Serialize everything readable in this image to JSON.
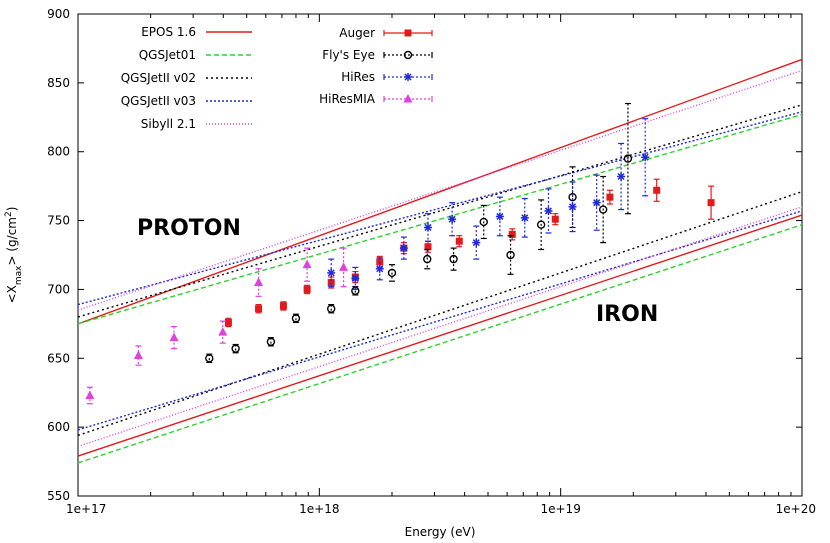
{
  "chart_data": {
    "type": "line",
    "title": "",
    "xlabel": "Energy (eV)",
    "ylabel": "<X_max> (g/cm^2)",
    "xscale": "log",
    "xlim": [
      1e+17,
      1e+20
    ],
    "ylim": [
      550,
      900
    ],
    "x_tick_labels": [
      "1e+17",
      "1e+18",
      "1e+19",
      "1e+20"
    ],
    "y_tick_labels": [
      "550",
      "600",
      "650",
      "700",
      "750",
      "800",
      "850",
      "900"
    ],
    "annotations": [
      "PROTON",
      "IRON"
    ],
    "model_lines": [
      {
        "name": "EPOS 1.6",
        "color": "#e31a1c",
        "dash": "",
        "proton": [
          675,
          867
        ],
        "iron": [
          579,
          754
        ]
      },
      {
        "name": "QGSJet01",
        "color": "#2ed12e",
        "dash": "5,3",
        "proton": [
          675,
          827
        ],
        "iron": [
          574,
          747
        ]
      },
      {
        "name": "QGSJetII v02",
        "color": "#000000",
        "dash": "2,3",
        "proton": [
          680,
          834
        ],
        "iron": [
          594,
          771
        ]
      },
      {
        "name": "QGSJetII v03",
        "color": "#1f2ad8",
        "dash": "2,2",
        "proton": [
          689,
          829
        ],
        "iron": [
          598,
          757
        ]
      },
      {
        "name": "Sibyll 2.1",
        "color": "#e040e0",
        "dash": "1,2",
        "proton": [
          685,
          859
        ],
        "iron": [
          586,
          760
        ]
      }
    ],
    "data_series": [
      {
        "name": "Auger",
        "color": "#e31a1c",
        "marker": "square",
        "x": [
          4.2e+17,
          5.6e+17,
          7.1e+17,
          8.9e+17,
          1.12e+18,
          1.41e+18,
          1.78e+18,
          2.24e+18,
          2.82e+18,
          3.8e+18,
          6.3e+18,
          9.5e+18,
          1.6e+19,
          2.5e+19,
          4.2e+19
        ],
        "y": [
          676,
          686,
          688,
          700,
          705,
          709,
          720,
          730,
          731,
          735,
          740,
          751,
          767,
          772,
          763
        ],
        "err": [
          3,
          3,
          3,
          3,
          4,
          4,
          4,
          4,
          4,
          4,
          4,
          4,
          5,
          8,
          12
        ]
      },
      {
        "name": "Fly's Eye",
        "color": "#000000",
        "marker": "circle",
        "x": [
          3.5e+17,
          4.5e+17,
          6.3e+17,
          8e+17,
          1.12e+18,
          1.41e+18,
          2e+18,
          2.8e+18,
          3.6e+18,
          4.8e+18,
          6.2e+18,
          8.3e+18,
          1.12e+19,
          1.5e+19,
          1.9e+19
        ],
        "y": [
          650,
          657,
          662,
          679,
          686,
          699,
          712,
          722,
          722,
          749,
          725,
          747,
          767,
          758,
          795
        ],
        "err": [
          3,
          3,
          3,
          3,
          3,
          3,
          6,
          7,
          8,
          12,
          14,
          18,
          22,
          24,
          40
        ]
      },
      {
        "name": "HiRes",
        "color": "#1f2ad8",
        "marker": "star",
        "x": [
          1.12e+18,
          1.41e+18,
          1.78e+18,
          2.24e+18,
          2.82e+18,
          3.55e+18,
          4.47e+18,
          5.6e+18,
          7.1e+18,
          8.9e+18,
          1.12e+19,
          1.41e+19,
          1.78e+19,
          2.24e+19
        ],
        "y": [
          712,
          708,
          715,
          730,
          745,
          751,
          734,
          753,
          752,
          757,
          760,
          763,
          782,
          796
        ],
        "err": [
          10,
          8,
          8,
          8,
          10,
          12,
          12,
          14,
          14,
          16,
          18,
          20,
          24,
          28
        ]
      },
      {
        "name": "HiResMIA",
        "color": "#e040e0",
        "marker": "triangle",
        "x": [
          1.12e+17,
          1.78e+17,
          2.5e+17,
          3.98e+17,
          5.6e+17,
          8.9e+17,
          1.26e+18
        ],
        "y": [
          623,
          652,
          665,
          669,
          705,
          718,
          716
        ],
        "err": [
          6,
          7,
          8,
          8,
          10,
          12,
          14
        ]
      }
    ]
  }
}
